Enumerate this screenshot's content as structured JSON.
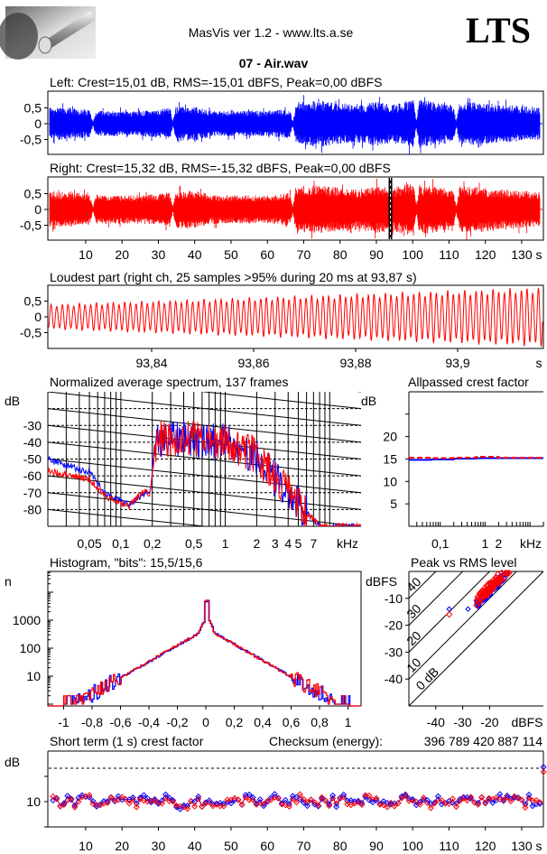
{
  "header": {
    "title": "MasVis ver 1.2 - www.lts.a.se",
    "logo_text": "LTS",
    "file": "07 - Air.wav"
  },
  "labels": {
    "left": "Left: Crest=15,01 dB, RMS=-15,01 dBFS, Peak=0,00 dBFS",
    "right": "Right: Crest=15,32 dB, RMS=-15,32 dBFS, Peak=0,00 dBFS",
    "loudest": "Loudest part (right ch, 25 samples >95% during 20 ms at 93,87 s)",
    "spectrum": "Normalized average spectrum, 137 frames",
    "allpass": "Allpassed crest factor",
    "histogram": "Histogram, \"bits\": 15,5/15,6",
    "peakrms": "Peak vs RMS level",
    "shortterm": "Short term (1 s) crest factor",
    "checksum_label": "Checksum (energy):",
    "checksum_value": "396 789 420 887 114"
  },
  "colors": {
    "left": "#0000ff",
    "right": "#ff0000"
  },
  "chart_data": {
    "waveform": {
      "type": "line",
      "yticks": [
        "0,5",
        "0",
        "-0,5"
      ],
      "ytick_values": [
        0.5,
        0,
        -0.5
      ],
      "ylim": [
        -1,
        1
      ],
      "xlim": [
        0,
        135
      ],
      "xticks": [
        "10",
        "20",
        "30",
        "40",
        "50",
        "60",
        "70",
        "80",
        "90",
        "100",
        "110",
        "120",
        "130"
      ],
      "xtick_values": [
        10,
        20,
        30,
        40,
        50,
        60,
        70,
        80,
        90,
        100,
        110,
        120,
        130
      ],
      "xunit": "s",
      "envelope_step_s": 5,
      "left_envelope": [
        0.5,
        0.5,
        0.45,
        0.4,
        0.4,
        0.4,
        0.45,
        0.55,
        0.55,
        0.4,
        0.4,
        0.4,
        0.4,
        0.45,
        0.7,
        0.72,
        0.65,
        0.6,
        0.7,
        0.6,
        0.8,
        0.72,
        0.6,
        0.7,
        0.65,
        0.6,
        0.55,
        0.5
      ],
      "right_envelope": [
        0.55,
        0.55,
        0.5,
        0.45,
        0.45,
        0.45,
        0.5,
        0.6,
        0.6,
        0.45,
        0.45,
        0.45,
        0.45,
        0.5,
        0.75,
        0.75,
        0.7,
        0.65,
        0.75,
        0.7,
        0.85,
        0.75,
        0.65,
        0.75,
        0.7,
        0.65,
        0.6,
        0.55
      ],
      "quiet_points_s": [
        12,
        34,
        67,
        101,
        112
      ],
      "marker_s": 93.87
    },
    "loudest": {
      "type": "line",
      "xlim": [
        93.82,
        93.917
      ],
      "xticks": [
        "93,84",
        "93,86",
        "93,88",
        "93,9"
      ],
      "xtick_values": [
        93.84,
        93.86,
        93.88,
        93.9
      ],
      "xunit": "s",
      "yticks": [
        "0,5",
        "0",
        "-0,5"
      ],
      "ytick_values": [
        0.5,
        0,
        -0.5
      ],
      "amplitude_start": 0.4,
      "amplitude_end": 0.95,
      "frequency_hz": 900
    },
    "spectrum": {
      "type": "line",
      "ylabel": "dB",
      "yticks": [
        "-30",
        "-40",
        "-50",
        "-60",
        "-70",
        "-80"
      ],
      "ytick_values": [
        -30,
        -40,
        -50,
        -60,
        -70,
        -80
      ],
      "ylim": [
        -90,
        -10
      ],
      "xlim_khz": [
        0.02,
        20
      ],
      "xticks": [
        "0,05",
        "0,1",
        "0,2",
        "0,5",
        "1",
        "2",
        "3",
        "4",
        "5",
        "7"
      ],
      "xtick_values": [
        0.05,
        0.1,
        0.2,
        0.5,
        1,
        2,
        3,
        4,
        5,
        7
      ],
      "xunit": "kHz",
      "left_anchors": [
        [
          0.02,
          -50
        ],
        [
          0.05,
          -58
        ],
        [
          0.07,
          -70
        ],
        [
          0.12,
          -77
        ],
        [
          0.17,
          -70
        ],
        [
          0.19,
          -70
        ],
        [
          0.22,
          -38
        ],
        [
          0.5,
          -38
        ],
        [
          1,
          -40
        ],
        [
          2,
          -48
        ],
        [
          3,
          -62
        ],
        [
          4,
          -70
        ],
        [
          6,
          -82
        ],
        [
          8,
          -90
        ],
        [
          20,
          -90
        ]
      ],
      "right_anchors": [
        [
          0.02,
          -57
        ],
        [
          0.05,
          -62
        ],
        [
          0.07,
          -72
        ],
        [
          0.12,
          -78
        ],
        [
          0.17,
          -68
        ],
        [
          0.19,
          -72
        ],
        [
          0.22,
          -38
        ],
        [
          0.5,
          -38
        ],
        [
          1,
          -40
        ],
        [
          2,
          -48
        ],
        [
          3,
          -62
        ],
        [
          4,
          -70
        ],
        [
          6,
          -82
        ],
        [
          8,
          -90
        ],
        [
          20,
          -90
        ]
      ]
    },
    "allpass": {
      "type": "line",
      "ylabel": "dB",
      "yticks": [
        "20",
        "15",
        "10",
        "5"
      ],
      "ytick_values": [
        20,
        15,
        10,
        5
      ],
      "ylim": [
        0,
        30
      ],
      "xlim_khz": [
        0.02,
        20
      ],
      "xticks": [
        "0,1",
        "1",
        "2"
      ],
      "xtick_values": [
        0.1,
        1,
        2
      ],
      "xunit": "kHz",
      "left_values": [
        14.8,
        14.9,
        15.1,
        15.2,
        15.2,
        15.2
      ],
      "right_values": [
        15.3,
        15.2,
        15.3,
        15.5,
        15.3,
        15.3
      ]
    },
    "histogram": {
      "type": "line",
      "ylabel": "n",
      "yticks": [
        "1000",
        "100",
        "10"
      ],
      "ytick_values": [
        1000,
        100,
        10
      ],
      "xticks": [
        "-1",
        "-0,8",
        "-0,6",
        "-0,4",
        "-0,2",
        "0",
        "0,2",
        "0,4",
        "0,6",
        "0,8",
        "1"
      ],
      "xtick_values": [
        -1,
        -0.8,
        -0.6,
        -0.4,
        -0.2,
        0,
        0.2,
        0.4,
        0.6,
        0.8,
        1
      ],
      "center_count": 500,
      "peak_count": 5000,
      "decades_per_unit": 2.9
    },
    "peak_vs_rms": {
      "type": "scatter",
      "ylabel": "dBFS",
      "xunit": "dBFS",
      "yticks": [
        "-10",
        "-20",
        "-30",
        "-40"
      ],
      "ytick_values": [
        -10,
        -20,
        -30,
        -40
      ],
      "xticks": [
        "-40",
        "-30",
        "-20"
      ],
      "xtick_values": [
        -40,
        -30,
        -20
      ],
      "xlim": [
        -50,
        0
      ],
      "ylim": [
        -50,
        0
      ],
      "crest_lines": [
        "0 dB",
        "10",
        "20",
        "30",
        "40"
      ],
      "crest_line_values": [
        0,
        10,
        20,
        30,
        40
      ],
      "cluster_rms_range": [
        -25,
        -10
      ],
      "outliers_left": [
        [
          -35,
          -14
        ],
        [
          -28,
          -14
        ]
      ],
      "outliers_right": [
        [
          -35,
          -16
        ]
      ]
    },
    "short_term_crest": {
      "type": "scatter",
      "ylabel": "dB",
      "yticks": [
        "10"
      ],
      "ytick_values": [
        10
      ],
      "dashed_value": 20,
      "xlim": [
        0,
        135
      ],
      "xunit": "s",
      "mean_db": 10.2,
      "last_left": 20.5,
      "last_right": 18.5
    }
  }
}
